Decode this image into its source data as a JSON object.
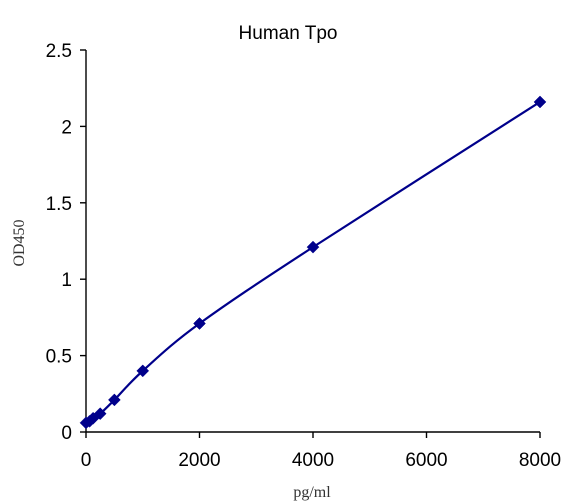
{
  "chart_data": {
    "type": "scatter",
    "title": "Human Tpo",
    "xlabel": "pg/ml",
    "ylabel": "OD450",
    "xlim": [
      0,
      8000
    ],
    "ylim": [
      0,
      2.5
    ],
    "x_ticks": [
      "0",
      "2000",
      "4000",
      "6000",
      "8000"
    ],
    "x_tick_values": [
      0,
      2000,
      4000,
      6000,
      8000
    ],
    "y_ticks": [
      "0",
      "0.5",
      "1",
      "1.5",
      "2",
      "2.5"
    ],
    "y_tick_values": [
      0,
      0.5,
      1,
      1.5,
      2,
      2.5
    ],
    "grid": false,
    "series": [
      {
        "marker": "diamond",
        "color": "#00008b",
        "fit_line": true,
        "points": [
          {
            "x": 0,
            "y": 0.06
          },
          {
            "x": 62.5,
            "y": 0.07
          },
          {
            "x": 125,
            "y": 0.09
          },
          {
            "x": 250,
            "y": 0.12
          },
          {
            "x": 500,
            "y": 0.21
          },
          {
            "x": 1000,
            "y": 0.4
          },
          {
            "x": 2000,
            "y": 0.71
          },
          {
            "x": 4000,
            "y": 1.21
          },
          {
            "x": 8000,
            "y": 2.16
          }
        ]
      }
    ]
  }
}
